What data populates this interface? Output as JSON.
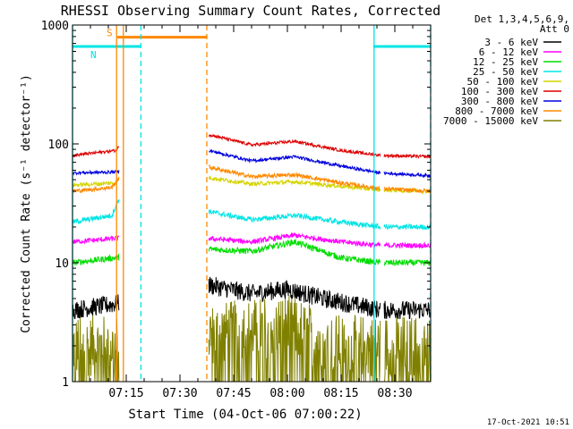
{
  "title": "RHESSI Observing Summary Count Rates, Corrected",
  "footer_date": "17-Oct-2021 10:51",
  "legend": {
    "header": [
      "Det 1,3,4,5,6,9,",
      "Att 0"
    ],
    "entries": [
      {
        "label": "3 - 6 keV",
        "color": "#000000"
      },
      {
        "label": "6 - 12 keV",
        "color": "#ff00ff"
      },
      {
        "label": "12 - 25 keV",
        "color": "#00dd00"
      },
      {
        "label": "25 - 50 keV",
        "color": "#00e5e5"
      },
      {
        "label": "50 - 100 keV",
        "color": "#d4d400"
      },
      {
        "label": "100 - 300 keV",
        "color": "#dd0000"
      },
      {
        "label": "300 - 800 keV",
        "color": "#0000dd"
      },
      {
        "label": "800 - 7000 keV",
        "color": "#ff8800"
      },
      {
        "label": "7000 - 15000 keV",
        "color": "#808000"
      }
    ]
  },
  "chart_data": {
    "type": "line",
    "title": "RHESSI Observing Summary Count Rates, Corrected",
    "xlabel": "Start Time (04-Oct-06 07:00:22)",
    "ylabel": "Corrected Count Rate (s⁻¹ detector⁻¹)",
    "yscale": "log",
    "ylim": [
      1,
      1000
    ],
    "xlim_minutes": [
      0,
      100
    ],
    "x_ticks": [
      {
        "label": "07:15",
        "minute": 15
      },
      {
        "label": "07:30",
        "minute": 30
      },
      {
        "label": "07:45",
        "minute": 45
      },
      {
        "label": "08:00",
        "minute": 60
      },
      {
        "label": "08:15",
        "minute": 75
      },
      {
        "label": "08:30",
        "minute": 90
      }
    ],
    "y_ticks": [
      {
        "label": "1",
        "value": 1
      },
      {
        "label": "10",
        "value": 10
      },
      {
        "label": "100",
        "value": 100
      },
      {
        "label": "1000",
        "value": 1000
      }
    ],
    "data_gaps_minutes": [
      [
        13,
        38
      ],
      [
        86,
        87
      ]
    ],
    "series": [
      {
        "name": "3 - 6 keV",
        "color": "#000000",
        "noise": 0.18,
        "points": [
          [
            0,
            4
          ],
          [
            12,
            4.5
          ],
          [
            38,
            6.5
          ],
          [
            50,
            5.5
          ],
          [
            60,
            6
          ],
          [
            70,
            5
          ],
          [
            86,
            4
          ],
          [
            100,
            4
          ]
        ]
      },
      {
        "name": "6 - 12 keV",
        "color": "#ff00ff",
        "noise": 0.05,
        "points": [
          [
            0,
            15
          ],
          [
            12,
            16
          ],
          [
            38,
            16
          ],
          [
            50,
            15
          ],
          [
            62,
            17
          ],
          [
            75,
            15
          ],
          [
            86,
            14
          ],
          [
            100,
            14
          ]
        ]
      },
      {
        "name": "12 - 25 keV",
        "color": "#00dd00",
        "noise": 0.06,
        "points": [
          [
            0,
            10
          ],
          [
            12,
            11
          ],
          [
            38,
            13
          ],
          [
            50,
            12.5
          ],
          [
            62,
            15
          ],
          [
            75,
            11
          ],
          [
            86,
            10
          ],
          [
            100,
            10
          ]
        ]
      },
      {
        "name": "25 - 50 keV",
        "color": "#00e5e5",
        "noise": 0.05,
        "points": [
          [
            0,
            22
          ],
          [
            11,
            25
          ],
          [
            13,
            35
          ],
          [
            38,
            27
          ],
          [
            50,
            23
          ],
          [
            62,
            25
          ],
          [
            75,
            22
          ],
          [
            86,
            20
          ],
          [
            100,
            20
          ]
        ]
      },
      {
        "name": "50 - 100 keV",
        "color": "#d4d400",
        "noise": 0.04,
        "points": [
          [
            0,
            45
          ],
          [
            12,
            47
          ],
          [
            13,
            52
          ],
          [
            38,
            52
          ],
          [
            50,
            46
          ],
          [
            62,
            48
          ],
          [
            75,
            44
          ],
          [
            86,
            41
          ],
          [
            100,
            40
          ]
        ]
      },
      {
        "name": "100 - 300 keV",
        "color": "#dd0000",
        "noise": 0.03,
        "points": [
          [
            0,
            80
          ],
          [
            12,
            88
          ],
          [
            13,
            95
          ],
          [
            38,
            120
          ],
          [
            50,
            98
          ],
          [
            62,
            105
          ],
          [
            75,
            88
          ],
          [
            86,
            80
          ],
          [
            100,
            78
          ]
        ]
      },
      {
        "name": "300 - 800 keV",
        "color": "#0000dd",
        "noise": 0.03,
        "points": [
          [
            0,
            57
          ],
          [
            12,
            58
          ],
          [
            38,
            88
          ],
          [
            50,
            72
          ],
          [
            62,
            78
          ],
          [
            75,
            65
          ],
          [
            86,
            57
          ],
          [
            100,
            54
          ]
        ]
      },
      {
        "name": "800 - 7000 keV",
        "color": "#ff8800",
        "noise": 0.04,
        "points": [
          [
            0,
            40
          ],
          [
            11,
            43
          ],
          [
            13,
            52
          ],
          [
            38,
            64
          ],
          [
            50,
            53
          ],
          [
            62,
            55
          ],
          [
            75,
            47
          ],
          [
            86,
            42
          ],
          [
            100,
            40
          ]
        ]
      },
      {
        "name": "7000 - 15000 keV",
        "color": "#808000",
        "noise": 0.6,
        "points": [
          [
            0,
            2
          ],
          [
            12,
            2
          ],
          [
            38,
            2.5
          ],
          [
            60,
            3
          ],
          [
            75,
            2
          ],
          [
            100,
            2
          ]
        ]
      }
    ],
    "annotations": [
      {
        "type": "hbar",
        "label": "S",
        "color": "#ff8800",
        "from_minute": 12.5,
        "to_minute": 37.5,
        "y": 790
      },
      {
        "type": "hbar",
        "label": "N",
        "color": "#00e5e5",
        "from_minute": 0,
        "to_minute": 19,
        "y": 660
      },
      {
        "type": "hbar",
        "label": "",
        "color": "#00e5e5",
        "from_minute": 84,
        "to_minute": 100,
        "y": 660
      }
    ],
    "vlines": [
      {
        "minute": 12.3,
        "color": "#ff8800",
        "style": "solid"
      },
      {
        "minute": 14.2,
        "color": "#ff8800",
        "style": "solid"
      },
      {
        "minute": 37.5,
        "color": "#ff8800",
        "style": "dashed"
      },
      {
        "minute": 19.1,
        "color": "#00e5e5",
        "style": "dashed"
      },
      {
        "minute": 84.2,
        "color": "#00e5e5",
        "style": "solid"
      },
      {
        "minute": 100,
        "color": "#00e5e5",
        "style": "dashed"
      },
      {
        "minute": 0,
        "color": "#00e5e5",
        "style": "solid"
      }
    ]
  }
}
